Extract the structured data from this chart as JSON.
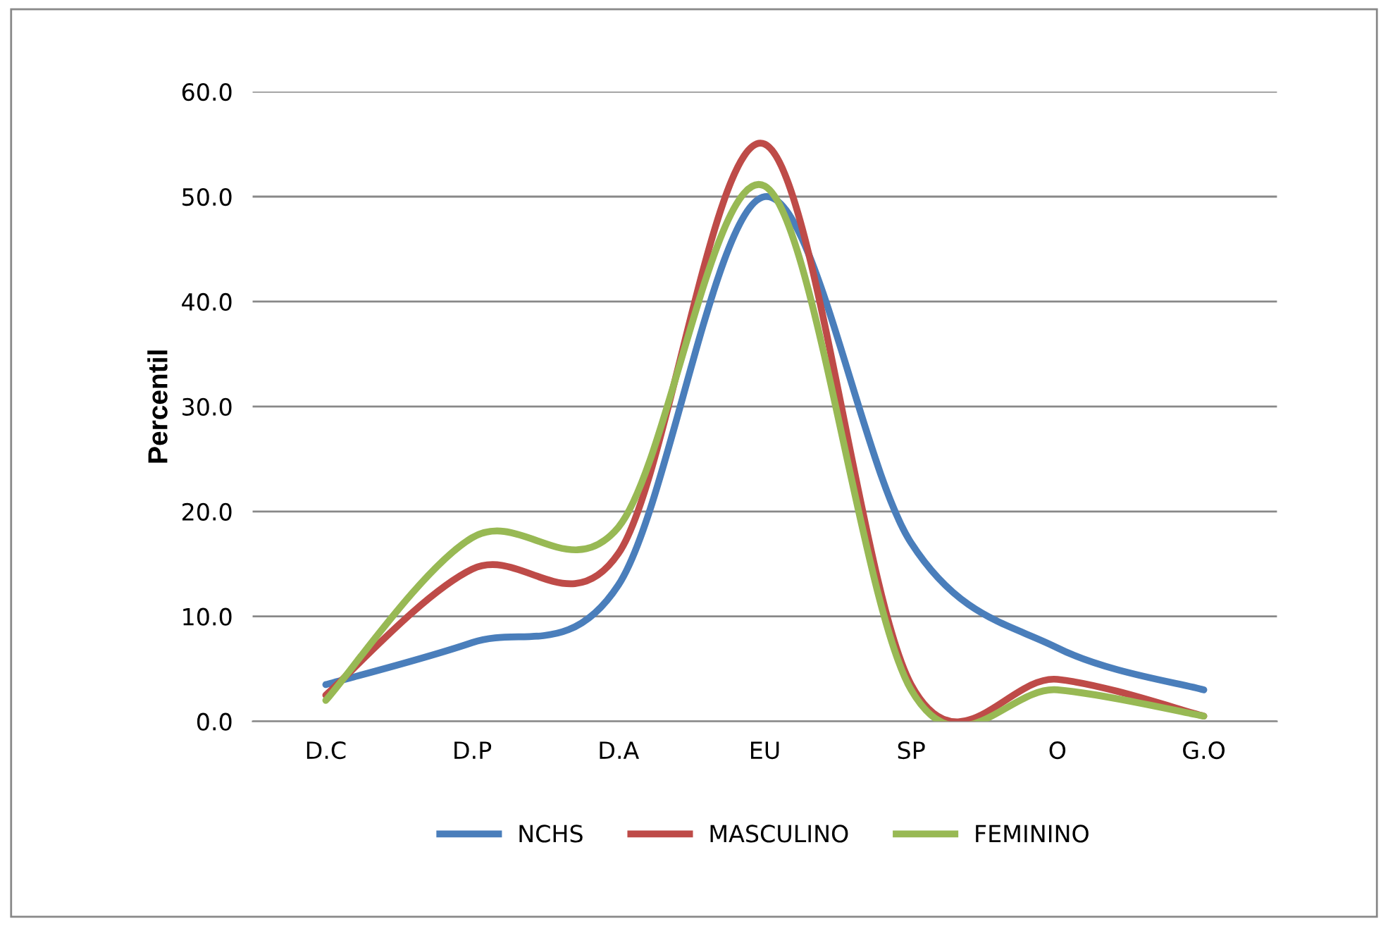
{
  "chart_data": {
    "type": "line",
    "ylabel": "Percentil",
    "categories": [
      "D.C",
      "D.P",
      "D.A",
      "EU",
      "SP",
      "O",
      "G.O"
    ],
    "series": [
      {
        "name": "NCHS",
        "color": "#4a7ebb",
        "values": [
          3.5,
          7.5,
          13,
          50,
          17,
          7,
          3
        ]
      },
      {
        "name": "MASCULINO",
        "color": "#be4b48",
        "values": [
          2.5,
          14.5,
          16,
          55,
          3.5,
          4,
          0.5
        ]
      },
      {
        "name": "FEMININO",
        "color": "#98b954",
        "values": [
          2,
          17.5,
          18.5,
          51,
          3,
          3,
          0.5
        ]
      }
    ],
    "ylim": [
      0,
      60
    ],
    "yticks": [
      {
        "value": 0,
        "label": "0.0"
      },
      {
        "value": 10,
        "label": "10.0"
      },
      {
        "value": 20,
        "label": "20.0"
      },
      {
        "value": 30,
        "label": "30.0"
      },
      {
        "value": 40,
        "label": "40.0"
      },
      {
        "value": 50,
        "label": "50.0"
      },
      {
        "value": 60,
        "label": "60.0"
      }
    ],
    "grid": "y",
    "legend": "bottom",
    "marker": "none",
    "line_style": "solid"
  }
}
